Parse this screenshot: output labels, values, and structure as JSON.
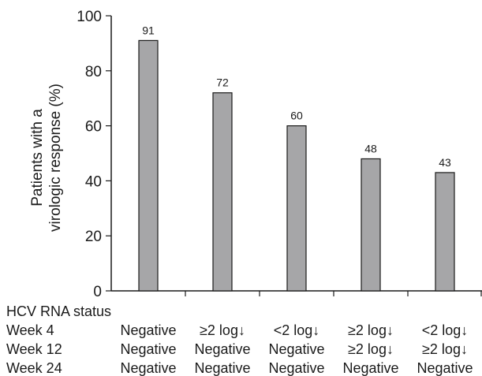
{
  "chart_data": {
    "type": "bar",
    "categories": [
      "Negative / Negative / Negative",
      "≥2 log↓ / Negative / Negative",
      "<2 log↓ / Negative / Negative",
      "≥2 log↓ / ≥2 log↓ / Negative",
      "<2 log↓ / ≥2 log↓ / Negative"
    ],
    "values": [
      91,
      72,
      60,
      48,
      43
    ],
    "data_labels": [
      "91",
      "72",
      "60",
      "48",
      "43"
    ],
    "ylabel_lines": [
      "Patients with a",
      "virologic response (%)"
    ],
    "ylim": [
      0,
      100
    ],
    "yticks": [
      0,
      20,
      40,
      60,
      80,
      100
    ],
    "ytick_labels": [
      "0",
      "20",
      "40",
      "60",
      "80",
      "100"
    ],
    "bar_color": "#a6a6a8",
    "grid": false,
    "legend": "none"
  },
  "status_table": {
    "title": "HCV RNA status",
    "rows": [
      {
        "label": "Week 4",
        "values": [
          "Negative",
          "≥2 log↓",
          "<2 log↓",
          "≥2 log↓",
          "<2 log↓"
        ]
      },
      {
        "label": "Week 12",
        "values": [
          "Negative",
          "Negative",
          "Negative",
          "≥2 log↓",
          "≥2 log↓"
        ]
      },
      {
        "label": "Week 24",
        "values": [
          "Negative",
          "Negative",
          "Negative",
          "Negative",
          "Negative"
        ]
      }
    ]
  }
}
